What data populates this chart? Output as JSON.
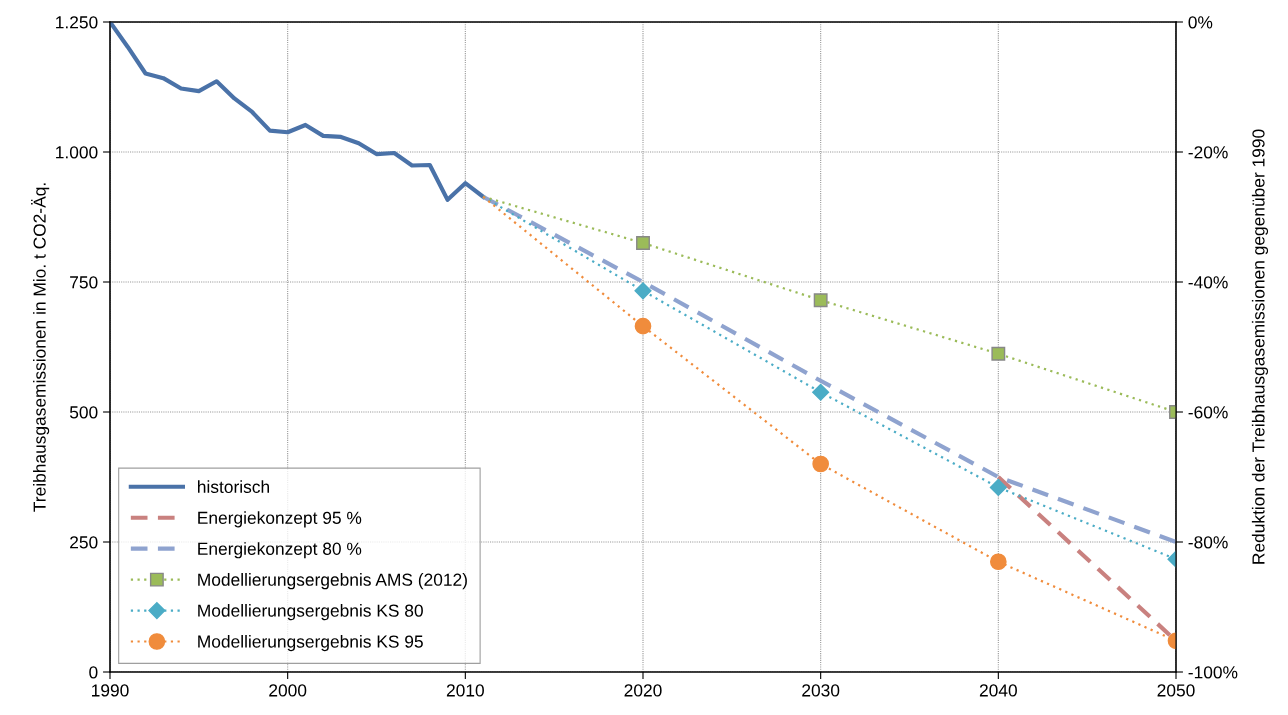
{
  "chart_data": {
    "type": "line",
    "ylabel": "Treibhausgasemissionen in Mio. t CO2-Äq.",
    "y2label": "Reduktion der Treibhausgasemissionen gegenüber 1990",
    "xlim": [
      1990,
      2050
    ],
    "xticks": [
      1990,
      2000,
      2010,
      2020,
      2030,
      2040,
      2050
    ],
    "ylim": [
      0,
      1250
    ],
    "yticks": [
      0,
      250,
      500,
      750,
      {
        "value": 1000,
        "label": "1.000"
      },
      {
        "value": 1250,
        "label": "1.250"
      }
    ],
    "y2lim": [
      -100,
      0
    ],
    "y2ticks": [
      {
        "value": -100,
        "label": "-100%"
      },
      {
        "value": -80,
        "label": "-80%"
      },
      {
        "value": -60,
        "label": "-60%"
      },
      {
        "value": -40,
        "label": "-40%"
      },
      {
        "value": -20,
        "label": "-20%"
      },
      {
        "value": 0,
        "label": "0%"
      }
    ],
    "grid": true,
    "legend": "bottom left",
    "series": [
      {
        "name": "historisch",
        "color": "#4a72a8",
        "line_style": "solid",
        "marker": "none",
        "x": [
          1990,
          1991,
          1992,
          1993,
          1994,
          1995,
          1996,
          1997,
          1998,
          1999,
          2000,
          2001,
          2002,
          2003,
          2004,
          2005,
          2006,
          2007,
          2008,
          2009,
          2010,
          2011
        ],
        "values": [
          1250,
          1202,
          1151,
          1142,
          1122,
          1117,
          1136,
          1103,
          1077,
          1041,
          1038,
          1052,
          1031,
          1029,
          1017,
          996,
          998,
          974,
          975,
          908,
          940,
          914
        ]
      },
      {
        "name": "Energiekonzept 95 %",
        "color": "#c9817f",
        "line_style": "dashed",
        "marker": "none",
        "x": [
          2040,
          2050
        ],
        "values": [
          375,
          60
        ]
      },
      {
        "name": "Energiekonzept 80 %",
        "color": "#8fa3cf",
        "line_style": "dashed",
        "marker": "none",
        "x": [
          2011,
          2020,
          2030,
          2040,
          2050
        ],
        "values": [
          914,
          750,
          560,
          375,
          250
        ]
      },
      {
        "name": "Modellierungsergebnis AMS (2012)",
        "color": "#9bbb59",
        "line_style": "dotted",
        "marker": "square",
        "x": [
          2011,
          2020,
          2030,
          2040,
          2050
        ],
        "values": [
          914,
          825,
          715,
          612,
          500
        ]
      },
      {
        "name": "Modellierungsergebnis KS 80",
        "color": "#4bacc6",
        "line_style": "dotted",
        "marker": "diamond",
        "x": [
          2011,
          2020,
          2030,
          2040,
          2050
        ],
        "values": [
          914,
          733,
          538,
          355,
          217
        ]
      },
      {
        "name": "Modellierungsergebnis KS 95",
        "color": "#f08c3c",
        "line_style": "dotted",
        "marker": "circle",
        "x": [
          2011,
          2020,
          2030,
          2040,
          2050
        ],
        "values": [
          914,
          665,
          400,
          212,
          60
        ]
      }
    ]
  }
}
